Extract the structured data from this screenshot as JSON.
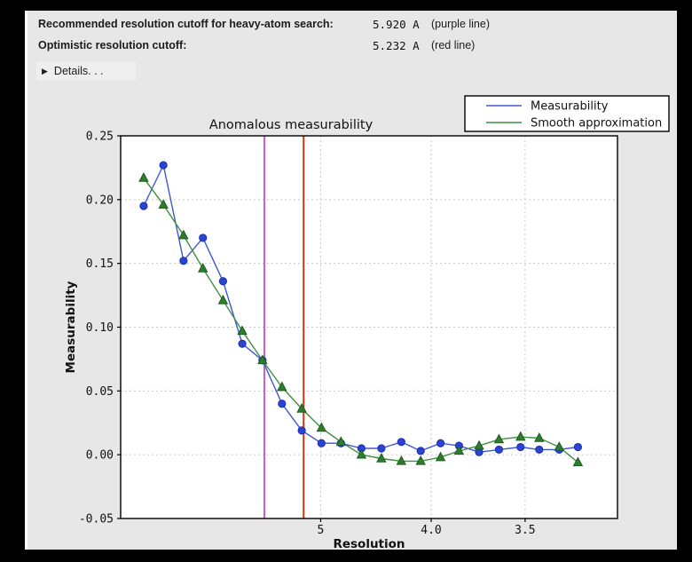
{
  "header": {
    "rows": [
      {
        "label": "Recommended resolution cutoff for heavy-atom search:",
        "value": "5.920 A",
        "note": "(purple line)"
      },
      {
        "label": "Optimistic resolution cutoff:",
        "value": "5.232 A",
        "note": "(red line)"
      }
    ],
    "details_label": "Details. . ."
  },
  "chart_data": {
    "type": "line",
    "title": "Anomalous measurability",
    "xlabel": "Resolution",
    "ylabel": "Measurability",
    "grid": true,
    "x_scale_note": "x axis linear in 1/d^2, resolution (Angstrom) decreasing to the right",
    "xlim_inv_sq": [
      -0.00073,
      0.10044
    ],
    "ylim": [
      -0.05,
      0.25
    ],
    "xticks": [
      {
        "value": 5.0,
        "label": "5"
      },
      {
        "value": 4.0,
        "label": "4.0"
      },
      {
        "value": 3.5,
        "label": "3.5"
      }
    ],
    "ytick_labels": [
      "0.25",
      "0.20",
      "0.15",
      "0.10",
      "0.05",
      "0.00",
      "-0.05"
    ],
    "x_resolution_A": [
      15.9,
      11.2,
      9.1,
      7.9,
      7.05,
      6.45,
      5.96,
      5.58,
      5.26,
      4.99,
      4.76,
      4.55,
      4.37,
      4.21,
      4.07,
      3.94,
      3.83,
      3.72,
      3.62,
      3.52,
      3.44,
      3.36,
      3.29
    ],
    "series": [
      {
        "name": "Measurability",
        "marker": "circle",
        "line_color": "#3e57d6",
        "marker_color": "#2945cf",
        "marker_edge": "#1b2db0",
        "values": [
          0.195,
          0.227,
          0.152,
          0.17,
          0.136,
          0.087,
          0.074,
          0.04,
          0.019,
          0.009,
          0.009,
          0.005,
          0.005,
          0.01,
          0.003,
          0.009,
          0.007,
          0.002,
          0.004,
          0.006,
          0.004,
          0.004,
          0.006
        ]
      },
      {
        "name": "Smooth approximation",
        "marker": "triangle",
        "line_color": "#3f8f3f",
        "marker_color": "#2e7d2e",
        "marker_edge": "#1e5c1e",
        "values": [
          0.217,
          0.196,
          0.172,
          0.146,
          0.121,
          0.097,
          0.074,
          0.053,
          0.036,
          0.021,
          0.01,
          0.0,
          -0.003,
          -0.005,
          -0.005,
          -0.002,
          0.003,
          0.007,
          0.012,
          0.014,
          0.013,
          0.006,
          -0.006
        ]
      }
    ],
    "vlines": [
      {
        "resolution_A": 5.92,
        "color": "#c334c3",
        "label": "purple line"
      },
      {
        "resolution_A": 5.232,
        "color": "#c43b12",
        "label": "red line"
      }
    ],
    "legend": {
      "position": "upper right",
      "entries": [
        "Measurability",
        "Smooth approximation"
      ]
    }
  },
  "colors": {
    "frame": "#000000",
    "window_bg": "#e7e7e7",
    "plot_bg": "#ffffff",
    "grid": "#c9c9c9",
    "text": "#1b1b1b"
  }
}
